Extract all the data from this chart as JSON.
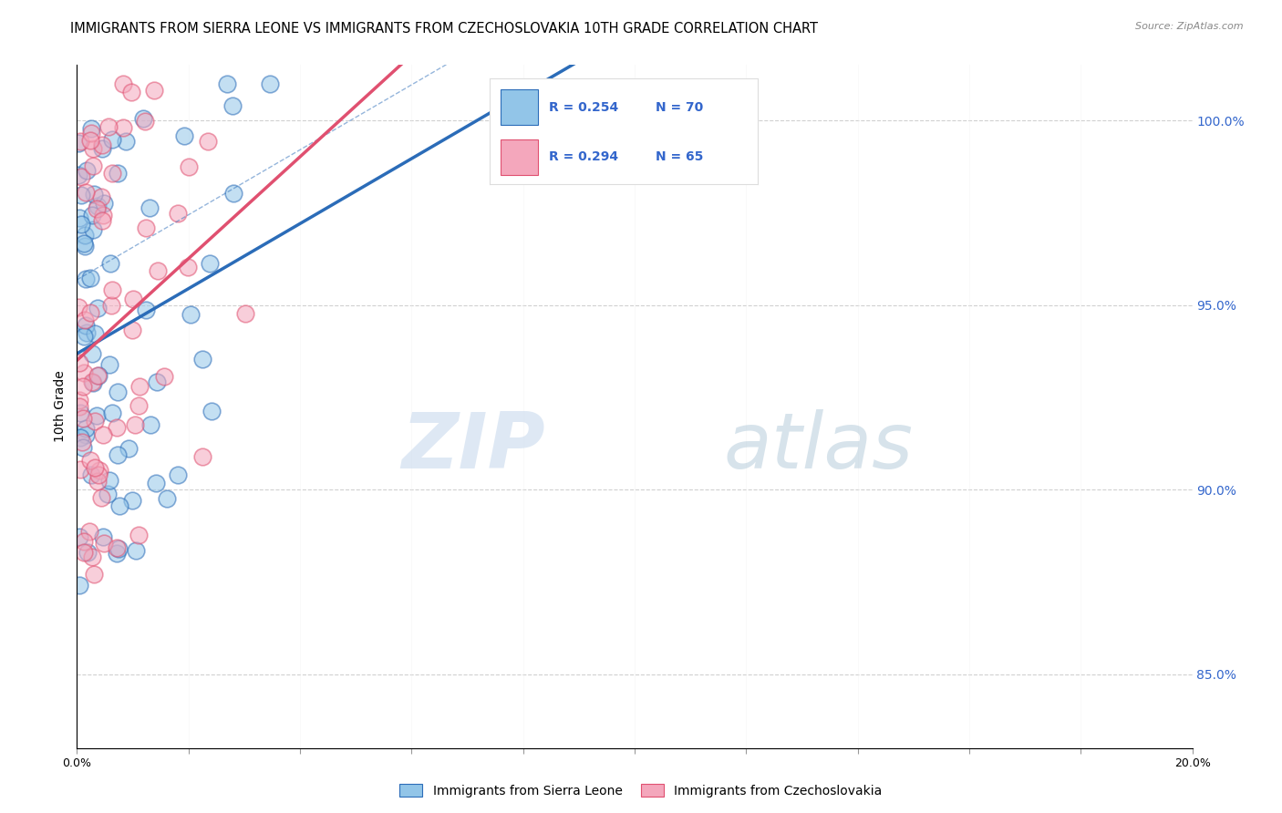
{
  "title": "IMMIGRANTS FROM SIERRA LEONE VS IMMIGRANTS FROM CZECHOSLOVAKIA 10TH GRADE CORRELATION CHART",
  "source": "Source: ZipAtlas.com",
  "ylabel": "10th Grade",
  "xlim": [
    0.0,
    20.0
  ],
  "ylim": [
    83.0,
    101.5
  ],
  "right_yticks": [
    85.0,
    90.0,
    95.0,
    100.0
  ],
  "right_yticklabels": [
    "85.0%",
    "90.0%",
    "95.0%",
    "100.0%"
  ],
  "sierra_leone_color": "#92C5E8",
  "czechoslovakia_color": "#F4A7BC",
  "sierra_leone_line_color": "#2B6CB8",
  "czechoslovakia_line_color": "#E05070",
  "legend_label_1": "Immigrants from Sierra Leone",
  "legend_label_2": "Immigrants from Czechoslovakia",
  "R1": 0.254,
  "N1": 70,
  "R2": 0.294,
  "N2": 65,
  "watermark_zip": "ZIP",
  "watermark_atlas": "atlas",
  "background_color": "#FFFFFF",
  "grid_color": "#CCCCCC",
  "title_fontsize": 10.5,
  "axis_label_fontsize": 10,
  "tick_fontsize": 9,
  "right_tick_color": "#3366CC",
  "legend_text_color": "#3366CC"
}
